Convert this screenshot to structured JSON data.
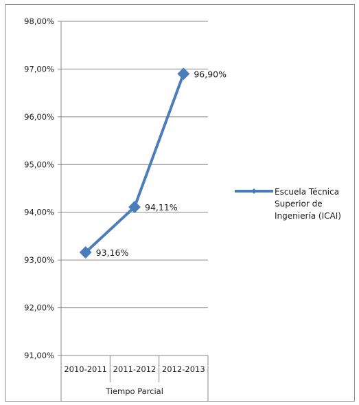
{
  "chart_data": {
    "type": "line",
    "categories": [
      "2010-2011",
      "2011-2012",
      "2012-2013"
    ],
    "category_group": "Tiempo Parcial",
    "series": [
      {
        "name": "Escuela Técnica Superior de Ingeniería (ICAI)",
        "values": [
          93.16,
          94.11,
          96.9
        ],
        "labels": [
          "93,16%",
          "94,11%",
          "96,90%"
        ],
        "color": "#4a7ebb"
      }
    ],
    "ylim": [
      91,
      98
    ],
    "yticks": [
      "91,00%",
      "92,00%",
      "93,00%",
      "94,00%",
      "95,00%",
      "96,00%",
      "97,00%",
      "98,00%"
    ],
    "grid": true,
    "legend_position": "right",
    "legend_lines": [
      "Escuela Técnica",
      "Superior de",
      "Ingeniería (ICAI)"
    ]
  }
}
